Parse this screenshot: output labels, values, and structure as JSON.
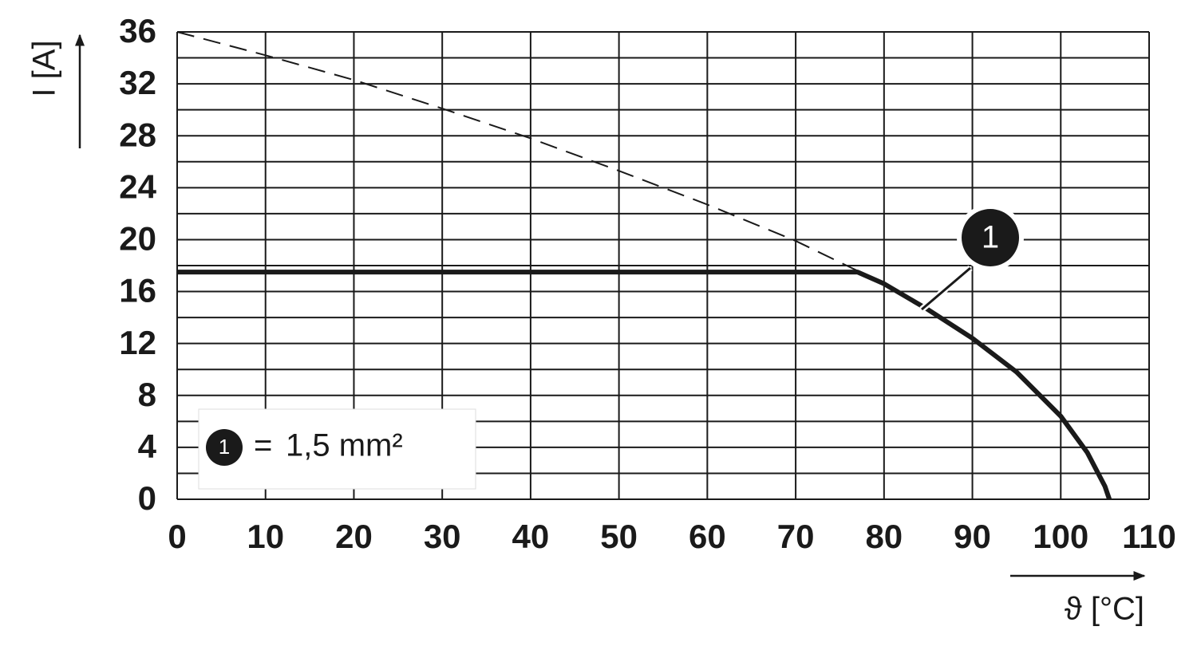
{
  "chart_data": {
    "type": "line",
    "x_label": "ϑ [°C]",
    "y_label": "I [A]",
    "xlim": [
      0,
      110
    ],
    "ylim": [
      0,
      36
    ],
    "xticks": [
      0,
      10,
      20,
      30,
      40,
      50,
      60,
      70,
      80,
      90,
      100,
      110
    ],
    "yticks": [
      0,
      4,
      8,
      12,
      16,
      20,
      24,
      28,
      32,
      36
    ],
    "y_minor_gridlines": [
      2,
      6,
      10,
      14,
      18,
      22,
      26,
      30,
      34
    ],
    "grid": true,
    "series": [
      {
        "name": "1,5 mm²",
        "marker": "1",
        "color": "#1a1a1a",
        "x": [
          0,
          77,
          80,
          85,
          90,
          95,
          100,
          103,
          105,
          105.5
        ],
        "values": [
          17.5,
          17.5,
          16.6,
          14.6,
          12.4,
          9.8,
          6.4,
          3.6,
          1.0,
          0
        ]
      }
    ],
    "reference_curve": {
      "color": "#1a1a1a",
      "x": [
        0,
        10,
        20,
        30,
        40,
        50,
        60,
        70,
        77
      ],
      "values": [
        36,
        34.2,
        32.3,
        30.1,
        27.8,
        25.3,
        22.7,
        19.9,
        17.6
      ]
    },
    "legend_separator": "=",
    "legend": "lower left"
  }
}
